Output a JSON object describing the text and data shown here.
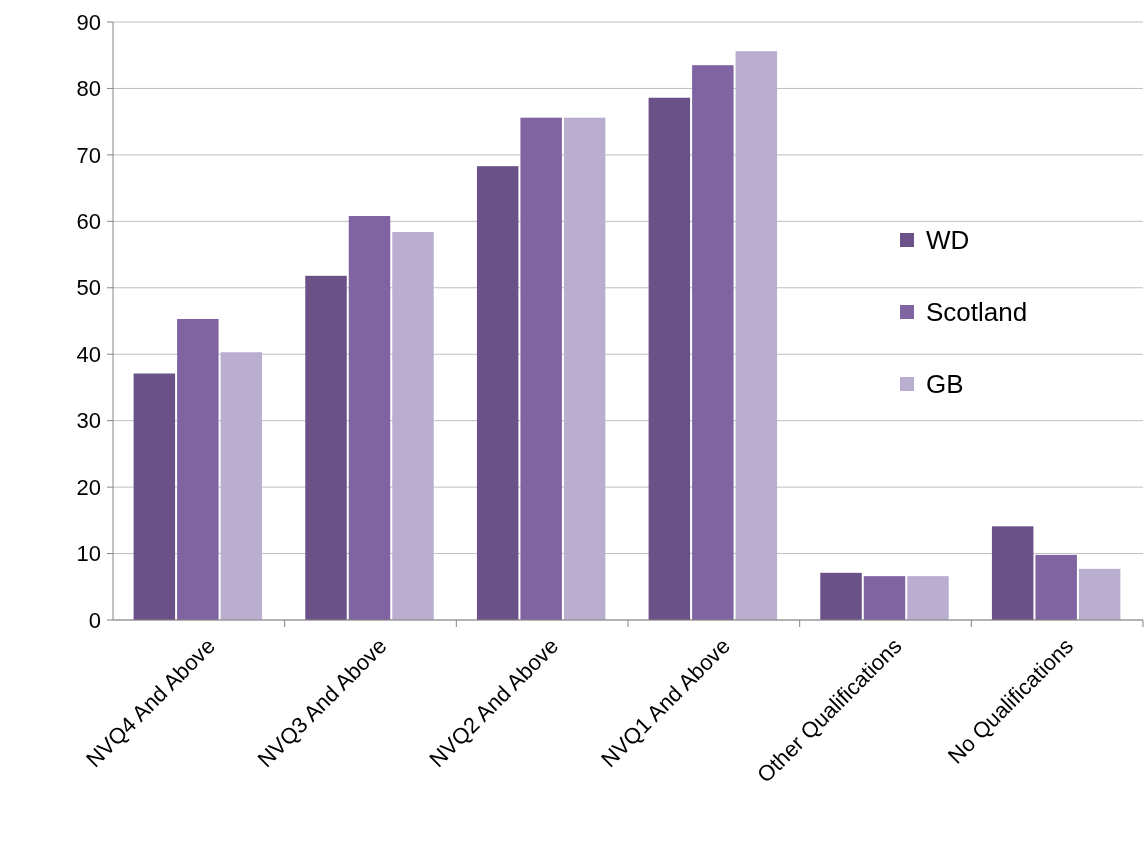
{
  "chart_data": {
    "type": "bar",
    "categories": [
      "NVQ4 And Above",
      "NVQ3 And Above",
      "NVQ2 And Above",
      "NVQ1 And Above",
      "Other Qualifications",
      "No Qualifications"
    ],
    "series": [
      {
        "name": "WD",
        "color": "#6a5187",
        "values": [
          37.1,
          51.8,
          68.3,
          78.6,
          7.1,
          14.1
        ]
      },
      {
        "name": "Scotland",
        "color": "#8064a2",
        "values": [
          45.3,
          60.8,
          75.6,
          83.5,
          6.6,
          9.8
        ]
      },
      {
        "name": "GB",
        "color": "#b9aecf",
        "values": [
          40.3,
          58.4,
          75.6,
          85.6,
          6.6,
          7.7
        ]
      }
    ],
    "ylim": [
      0,
      90
    ],
    "yticks": [
      0,
      10,
      20,
      30,
      40,
      50,
      60,
      70,
      80,
      90
    ],
    "grid": "y",
    "legend": "right"
  }
}
